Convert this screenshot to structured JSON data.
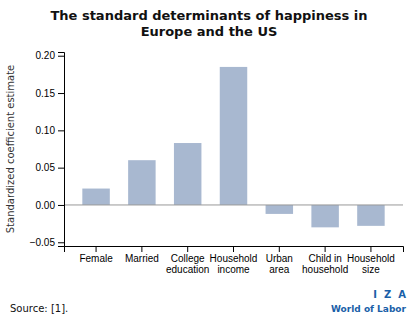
{
  "chart_data": {
    "type": "bar",
    "title": "The standard determinants of happiness in\nEurope and the US",
    "ylabel": "Standardized coefficient estimate",
    "categories": [
      "Female",
      "Married",
      "College\neducation",
      "Household\nincome",
      "Urban\narea",
      "Child in\nhousehold",
      "Household\nsize"
    ],
    "values": [
      0.022,
      0.06,
      0.083,
      0.185,
      -0.012,
      -0.03,
      -0.028
    ],
    "color": "#a8b8d0",
    "ylim": [
      -0.055,
      0.205
    ],
    "yticks": [
      {
        "value": -0.05,
        "label": "−0.05"
      },
      {
        "value": 0.0,
        "label": "0.00"
      },
      {
        "value": 0.05,
        "label": "0.05"
      },
      {
        "value": 0.1,
        "label": "0.10"
      },
      {
        "value": 0.15,
        "label": "0.15"
      },
      {
        "value": 0.2,
        "label": "0.20"
      }
    ],
    "grid": false,
    "annotations": [
      "Source: [1].",
      "I  Z  A",
      "World of Labor"
    ]
  }
}
